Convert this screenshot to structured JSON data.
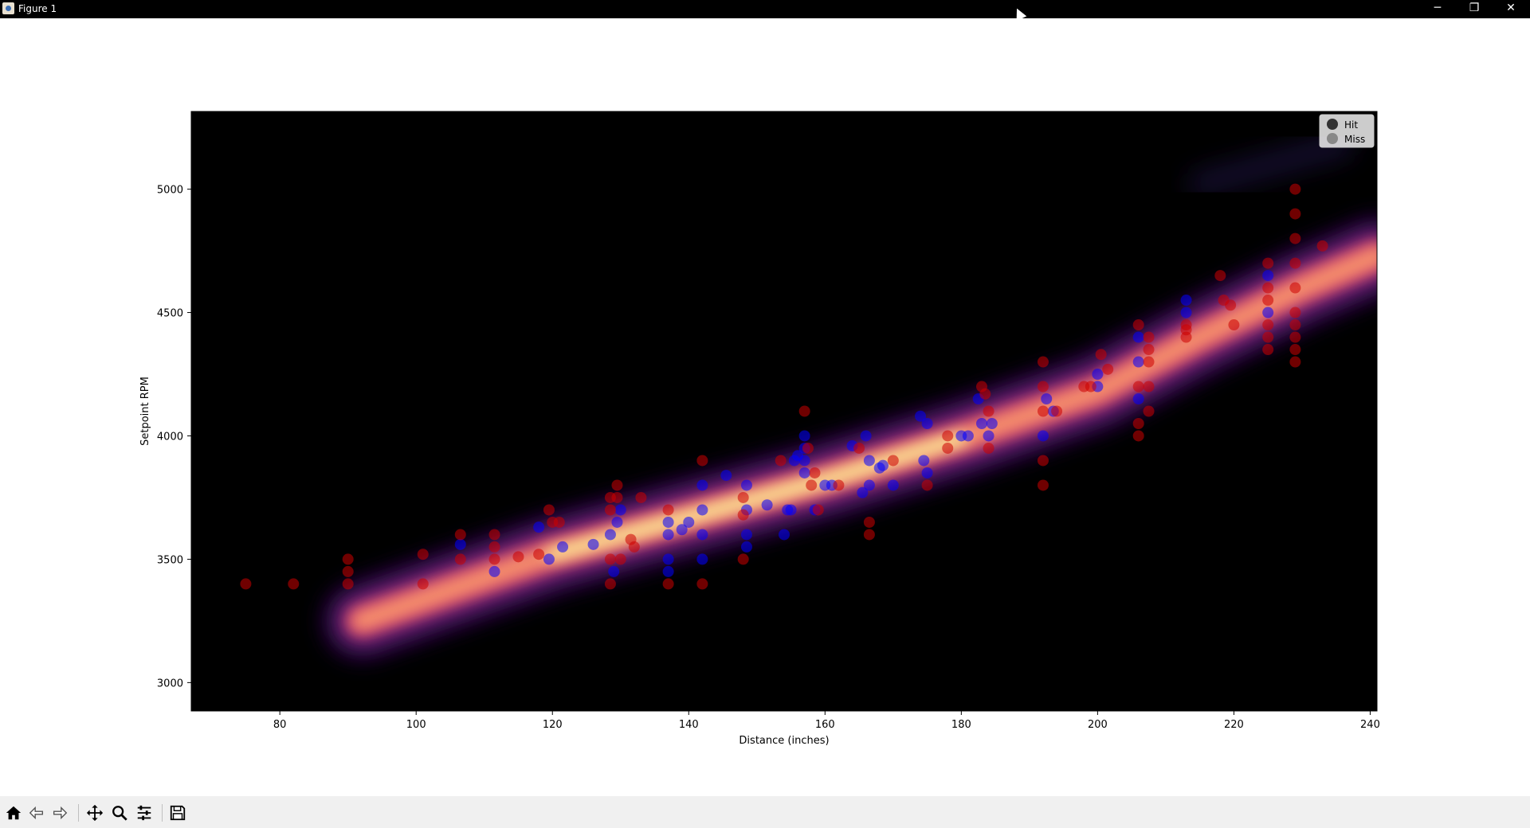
{
  "window": {
    "title": "Figure 1",
    "minimize_glyph": "─",
    "maximize_glyph": "❐",
    "close_glyph": "✕"
  },
  "toolbar": {
    "buttons": [
      {
        "name": "home-button",
        "icon": "home-icon"
      },
      {
        "name": "back-button",
        "icon": "arrow-left-icon"
      },
      {
        "name": "forward-button",
        "icon": "arrow-right-icon"
      },
      {
        "name": "pan-button",
        "icon": "move-icon"
      },
      {
        "name": "zoom-button",
        "icon": "magnifier-icon"
      },
      {
        "name": "configure-subplots-button",
        "icon": "sliders-icon"
      },
      {
        "name": "save-button",
        "icon": "floppy-icon"
      }
    ]
  },
  "chart_data": {
    "type": "scatter",
    "title": "",
    "xlabel": "Distance (inches)",
    "ylabel": "Setpoint RPM",
    "xlim": [
      67,
      241
    ],
    "ylim": [
      2885,
      5315
    ],
    "xticks": [
      80,
      100,
      120,
      140,
      160,
      180,
      200,
      220,
      240
    ],
    "yticks": [
      3000,
      3500,
      4000,
      4500,
      5000
    ],
    "background": "#000000",
    "legend": {
      "position": "top-right",
      "entries": [
        {
          "label": "Hit",
          "color": "#333333"
        },
        {
          "label": "Miss",
          "color": "#888888"
        }
      ]
    },
    "density": {
      "colormap": "inferno",
      "ridge": [
        [
          92,
          3250
        ],
        [
          120,
          3520
        ],
        [
          140,
          3670
        ],
        [
          160,
          3820
        ],
        [
          180,
          3990
        ],
        [
          200,
          4180
        ],
        [
          215,
          4400
        ],
        [
          230,
          4600
        ],
        [
          241,
          4730
        ]
      ]
    },
    "series": [
      {
        "name": "Hit",
        "color": "#0000ff",
        "points": [
          [
            106.5,
            3560
          ],
          [
            111.5,
            3450
          ],
          [
            118,
            3630
          ],
          [
            119.5,
            3500
          ],
          [
            121.5,
            3550
          ],
          [
            126,
            3560
          ],
          [
            128.5,
            3600
          ],
          [
            129,
            3450
          ],
          [
            129.5,
            3650
          ],
          [
            130,
            3700
          ],
          [
            137,
            3600
          ],
          [
            137,
            3650
          ],
          [
            137,
            3500
          ],
          [
            137,
            3450
          ],
          [
            139,
            3620
          ],
          [
            140,
            3650
          ],
          [
            142,
            3800
          ],
          [
            142,
            3700
          ],
          [
            142,
            3600
          ],
          [
            142,
            3500
          ],
          [
            145.5,
            3840
          ],
          [
            148.5,
            3800
          ],
          [
            148.5,
            3700
          ],
          [
            148.5,
            3600
          ],
          [
            148.5,
            3550
          ],
          [
            151.5,
            3720
          ],
          [
            154,
            3600
          ],
          [
            154.5,
            3700
          ],
          [
            155,
            3700
          ],
          [
            155.5,
            3900
          ],
          [
            156,
            3920
          ],
          [
            157,
            4000
          ],
          [
            157,
            3950
          ],
          [
            157,
            3900
          ],
          [
            157,
            3850
          ],
          [
            158.5,
            3700
          ],
          [
            160,
            3800
          ],
          [
            161,
            3800
          ],
          [
            164,
            3960
          ],
          [
            165.5,
            3770
          ],
          [
            166,
            4000
          ],
          [
            166.5,
            3800
          ],
          [
            166.5,
            3900
          ],
          [
            168,
            3870
          ],
          [
            168.5,
            3880
          ],
          [
            170,
            3800
          ],
          [
            174,
            4080
          ],
          [
            174.5,
            3900
          ],
          [
            175,
            4050
          ],
          [
            175,
            3850
          ],
          [
            180,
            4000
          ],
          [
            181,
            4000
          ],
          [
            182.5,
            4150
          ],
          [
            183,
            4050
          ],
          [
            184,
            4000
          ],
          [
            184.5,
            4050
          ],
          [
            192,
            4000
          ],
          [
            192.5,
            4150
          ],
          [
            193.5,
            4100
          ],
          [
            200,
            4250
          ],
          [
            200,
            4200
          ],
          [
            206,
            4400
          ],
          [
            206,
            4300
          ],
          [
            206,
            4150
          ],
          [
            213,
            4550
          ],
          [
            213,
            4500
          ],
          [
            225,
            4650
          ],
          [
            225,
            4500
          ]
        ]
      },
      {
        "name": "Miss",
        "color": "#cc0000",
        "points": [
          [
            75,
            3400
          ],
          [
            82,
            3400
          ],
          [
            90,
            3500
          ],
          [
            90,
            3450
          ],
          [
            90,
            3400
          ],
          [
            101,
            3520
          ],
          [
            101,
            3400
          ],
          [
            106.5,
            3600
          ],
          [
            106.5,
            3500
          ],
          [
            111.5,
            3600
          ],
          [
            111.5,
            3550
          ],
          [
            111.5,
            3500
          ],
          [
            115,
            3510
          ],
          [
            118,
            3520
          ],
          [
            119.5,
            3700
          ],
          [
            120,
            3650
          ],
          [
            121,
            3650
          ],
          [
            128.5,
            3750
          ],
          [
            128.5,
            3700
          ],
          [
            128.5,
            3500
          ],
          [
            128.5,
            3400
          ],
          [
            129.5,
            3800
          ],
          [
            129.5,
            3750
          ],
          [
            130,
            3500
          ],
          [
            131.5,
            3580
          ],
          [
            132,
            3550
          ],
          [
            133,
            3750
          ],
          [
            137,
            3700
          ],
          [
            137,
            3400
          ],
          [
            142,
            3900
          ],
          [
            142,
            3400
          ],
          [
            148,
            3750
          ],
          [
            148,
            3500
          ],
          [
            148,
            3680
          ],
          [
            153.5,
            3900
          ],
          [
            157,
            4100
          ],
          [
            157.5,
            3950
          ],
          [
            158,
            3800
          ],
          [
            158.5,
            3850
          ],
          [
            159,
            3700
          ],
          [
            162,
            3800
          ],
          [
            165,
            3950
          ],
          [
            166.5,
            3650
          ],
          [
            166.5,
            3600
          ],
          [
            170,
            3900
          ],
          [
            175,
            3800
          ],
          [
            178,
            3950
          ],
          [
            178,
            4000
          ],
          [
            183,
            4200
          ],
          [
            183.5,
            4170
          ],
          [
            184,
            4100
          ],
          [
            184,
            3950
          ],
          [
            192,
            4300
          ],
          [
            192,
            4200
          ],
          [
            192,
            4100
          ],
          [
            192,
            3900
          ],
          [
            192,
            3800
          ],
          [
            194,
            4100
          ],
          [
            198,
            4200
          ],
          [
            199,
            4200
          ],
          [
            200.5,
            4330
          ],
          [
            201.5,
            4270
          ],
          [
            206,
            4450
          ],
          [
            206,
            4200
          ],
          [
            206,
            4050
          ],
          [
            206,
            4000
          ],
          [
            207.5,
            4400
          ],
          [
            207.5,
            4350
          ],
          [
            207.5,
            4300
          ],
          [
            207.5,
            4200
          ],
          [
            207.5,
            4100
          ],
          [
            213,
            4450
          ],
          [
            213,
            4430
          ],
          [
            213,
            4400
          ],
          [
            218,
            4650
          ],
          [
            218.5,
            4550
          ],
          [
            219.5,
            4530
          ],
          [
            220,
            4450
          ],
          [
            225,
            4700
          ],
          [
            225,
            4600
          ],
          [
            225,
            4550
          ],
          [
            225,
            4450
          ],
          [
            225,
            4400
          ],
          [
            225,
            4350
          ],
          [
            229,
            5000
          ],
          [
            229,
            4900
          ],
          [
            229,
            4800
          ],
          [
            229,
            4700
          ],
          [
            229,
            4600
          ],
          [
            229,
            4500
          ],
          [
            229,
            4450
          ],
          [
            229,
            4400
          ],
          [
            229,
            4350
          ],
          [
            229,
            4300
          ],
          [
            233,
            4770
          ]
        ]
      }
    ]
  }
}
